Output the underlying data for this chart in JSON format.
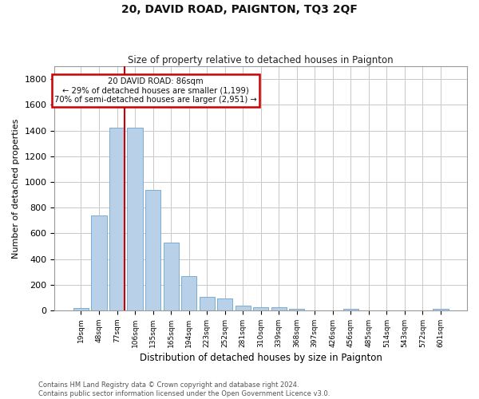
{
  "title": "20, DAVID ROAD, PAIGNTON, TQ3 2QF",
  "subtitle": "Size of property relative to detached houses in Paignton",
  "xlabel": "Distribution of detached houses by size in Paignton",
  "ylabel": "Number of detached properties",
  "footer_line1": "Contains HM Land Registry data © Crown copyright and database right 2024.",
  "footer_line2": "Contains public sector information licensed under the Open Government Licence v3.0.",
  "categories": [
    "19sqm",
    "48sqm",
    "77sqm",
    "106sqm",
    "135sqm",
    "165sqm",
    "194sqm",
    "223sqm",
    "252sqm",
    "281sqm",
    "310sqm",
    "339sqm",
    "368sqm",
    "397sqm",
    "426sqm",
    "456sqm",
    "485sqm",
    "514sqm",
    "543sqm",
    "572sqm",
    "601sqm"
  ],
  "values": [
    20,
    740,
    1420,
    1420,
    935,
    530,
    265,
    105,
    90,
    40,
    25,
    25,
    15,
    0,
    0,
    15,
    0,
    0,
    0,
    0,
    15
  ],
  "bar_color": "#b8d0e8",
  "bar_edge_color": "#7aaed4",
  "red_line_index": 2,
  "annotation_line1": "20 DAVID ROAD: 86sqm",
  "annotation_line2": "← 29% of detached houses are smaller (1,199)",
  "annotation_line3": "70% of semi-detached houses are larger (2,951) →",
  "annotation_box_color": "#ffffff",
  "annotation_border_color": "#cc0000",
  "ylim": [
    0,
    1900
  ],
  "yticks": [
    0,
    200,
    400,
    600,
    800,
    1000,
    1200,
    1400,
    1600,
    1800
  ],
  "background_color": "#ffffff",
  "grid_color": "#c8c8c8",
  "title_fontsize": 10,
  "subtitle_fontsize": 9
}
